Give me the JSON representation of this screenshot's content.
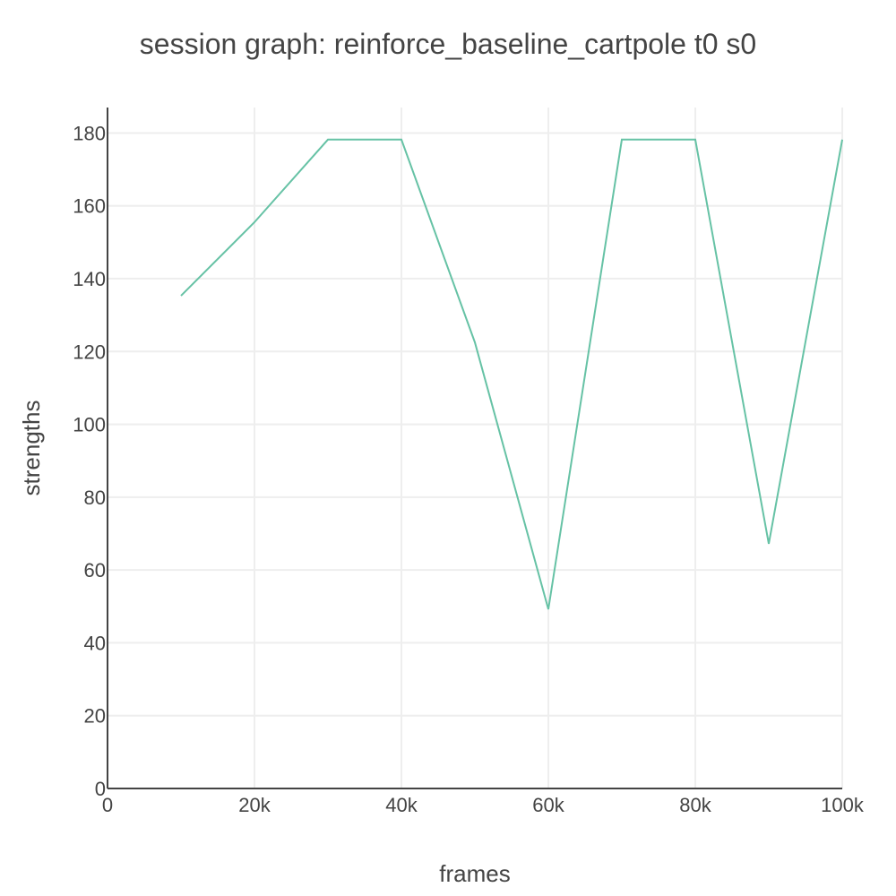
{
  "chart_data": {
    "type": "line",
    "title": "session graph: reinforce_baseline_cartpole t0 s0",
    "xlabel": "frames",
    "ylabel": "strengths",
    "xlim": [
      0,
      100000
    ],
    "ylim": [
      0,
      187
    ],
    "x_ticks": [
      0,
      20000,
      40000,
      60000,
      80000,
      100000
    ],
    "x_tick_labels": [
      "0",
      "20k",
      "40k",
      "60k",
      "80k",
      "100k"
    ],
    "y_ticks": [
      0,
      20,
      40,
      60,
      80,
      100,
      120,
      140,
      160,
      180
    ],
    "y_tick_labels": [
      "0",
      "20",
      "40",
      "60",
      "80",
      "100",
      "120",
      "140",
      "160",
      "180"
    ],
    "grid": true,
    "colors": {
      "series": "#66c2a5",
      "grid": "#eeeeee",
      "axis": "#444444",
      "text": "#444444"
    },
    "series": [
      {
        "x": [
          10000,
          20000,
          30000,
          40000,
          50000,
          60000,
          70000,
          80000,
          90000,
          100000
        ],
        "values": [
          135.3,
          155.5,
          178.2,
          178.2,
          122.5,
          49.2,
          178.2,
          178.2,
          67.2,
          178.2
        ]
      }
    ]
  }
}
